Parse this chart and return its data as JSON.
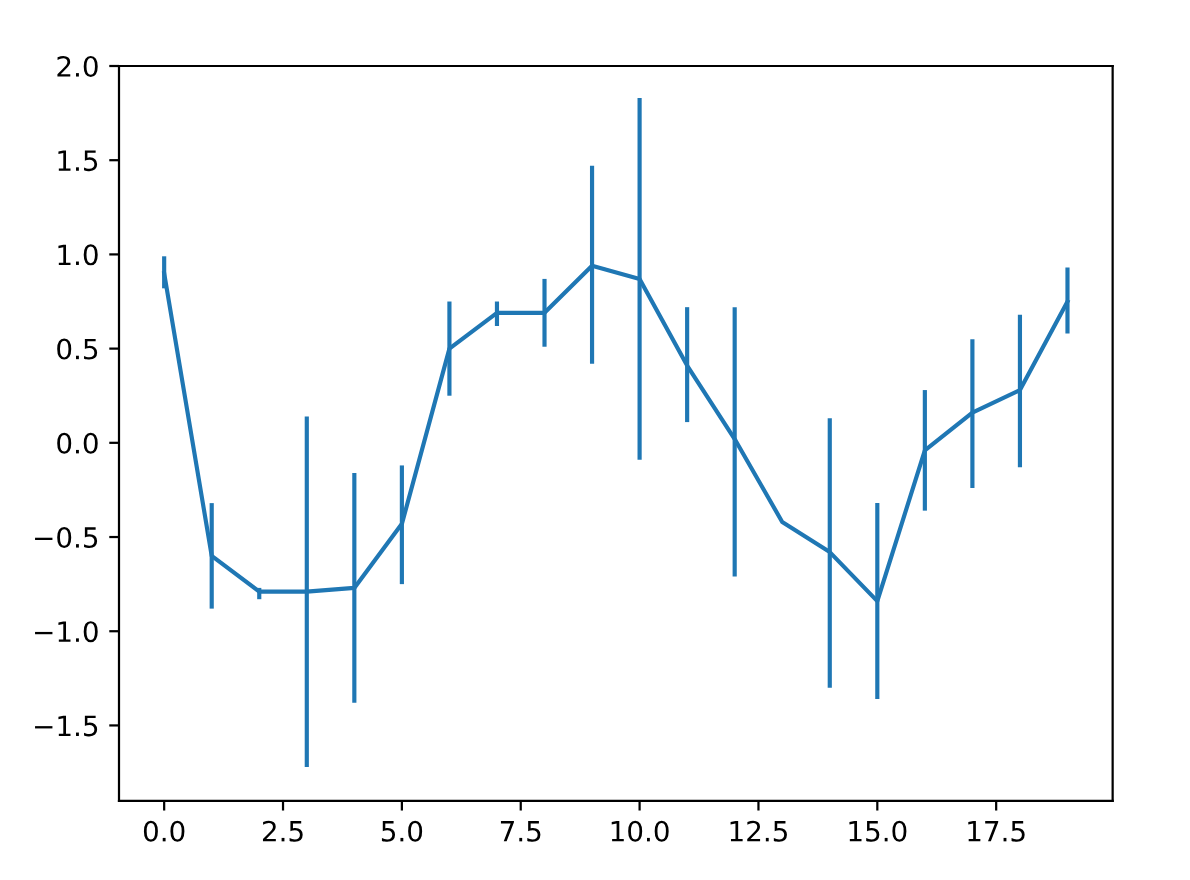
{
  "chart_data": {
    "type": "line",
    "x": [
      0,
      1,
      2,
      3,
      4,
      5,
      6,
      7,
      8,
      9,
      10,
      11,
      12,
      13,
      14,
      15,
      16,
      17,
      18,
      19
    ],
    "series": [
      {
        "color": "#1f77b4",
        "values": [
          0.9,
          -0.6,
          -0.79,
          -0.79,
          -0.77,
          -0.43,
          0.5,
          0.69,
          0.69,
          0.94,
          0.87,
          0.41,
          0.02,
          -0.42,
          -0.58,
          -0.84,
          -0.04,
          0.16,
          0.28,
          0.75
        ],
        "errors": [
          [
            0.82,
            0.99
          ],
          [
            -0.88,
            -0.32
          ],
          [
            -0.83,
            -0.77
          ],
          [
            -1.72,
            0.14
          ],
          [
            -1.38,
            -0.16
          ],
          [
            -0.75,
            -0.12
          ],
          [
            0.25,
            0.75
          ],
          [
            0.62,
            0.75
          ],
          [
            0.51,
            0.87
          ],
          [
            0.42,
            1.47
          ],
          [
            -0.09,
            1.83
          ],
          [
            0.11,
            0.72
          ],
          [
            -0.71,
            0.72
          ],
          null,
          [
            -1.3,
            0.13
          ],
          [
            -1.36,
            -0.32
          ],
          [
            -0.36,
            0.28
          ],
          [
            -0.24,
            0.55
          ],
          [
            -0.13,
            0.68
          ],
          [
            0.58,
            0.93
          ]
        ]
      }
    ],
    "xlim": [
      -0.95,
      19.95
    ],
    "ylim": [
      -1.9,
      2.0
    ],
    "xticks": [
      {
        "value": 0,
        "label": "0.0"
      },
      {
        "value": 2.5,
        "label": "2.5"
      },
      {
        "value": 5,
        "label": "5.0"
      },
      {
        "value": 7.5,
        "label": "7.5"
      },
      {
        "value": 10,
        "label": "10.0"
      },
      {
        "value": 12.5,
        "label": "12.5"
      },
      {
        "value": 15,
        "label": "15.0"
      },
      {
        "value": 17.5,
        "label": "17.5"
      }
    ],
    "yticks": [
      {
        "value": -1.5,
        "label": "−1.5"
      },
      {
        "value": -1.0,
        "label": "−1.0"
      },
      {
        "value": -0.5,
        "label": "−0.5"
      },
      {
        "value": 0,
        "label": "0.0"
      },
      {
        "value": 0.5,
        "label": "0.5"
      },
      {
        "value": 1.0,
        "label": "1.0"
      },
      {
        "value": 1.5,
        "label": "1.5"
      },
      {
        "value": 2.0,
        "label": "2.0"
      }
    ],
    "grid": false,
    "legend": false
  }
}
